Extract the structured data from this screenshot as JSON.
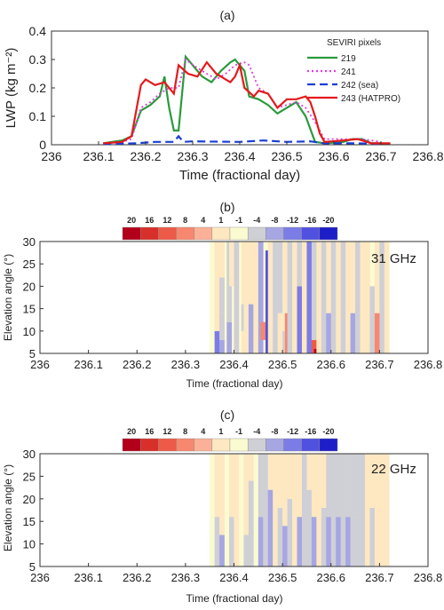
{
  "chart_data": [
    {
      "panel_label": "(a)",
      "type": "line",
      "xlabel": "Time (fractional day)",
      "ylabel": "LWP (kg m⁻²)",
      "xlim": [
        236,
        236.8
      ],
      "ylim": [
        0,
        0.4
      ],
      "xticks": [
        "236",
        "236.1",
        "236.2",
        "236.3",
        "236.4",
        "236.5",
        "236.6",
        "236.7",
        "236.8"
      ],
      "yticks": [
        "0",
        "0.1",
        "0.2",
        "0.3",
        "0.4"
      ],
      "legend": {
        "title": "SEVIRI pixels",
        "placement": "right"
      },
      "series": [
        {
          "name": "219",
          "color": "#2a9a3c",
          "dash": "solid",
          "points": [
            [
              236.11,
              0.005
            ],
            [
              236.15,
              0.015
            ],
            [
              236.17,
              0.03
            ],
            [
              236.19,
              0.12
            ],
            [
              236.21,
              0.14
            ],
            [
              236.23,
              0.17
            ],
            [
              236.24,
              0.24
            ],
            [
              236.25,
              0.13
            ],
            [
              236.26,
              0.05
            ],
            [
              236.27,
              0.05
            ],
            [
              236.285,
              0.31
            ],
            [
              236.3,
              0.28
            ],
            [
              236.32,
              0.24
            ],
            [
              236.34,
              0.22
            ],
            [
              236.36,
              0.26
            ],
            [
              236.38,
              0.29
            ],
            [
              236.39,
              0.3
            ],
            [
              236.4,
              0.28
            ],
            [
              236.41,
              0.26
            ],
            [
              236.42,
              0.17
            ],
            [
              236.44,
              0.16
            ],
            [
              236.46,
              0.14
            ],
            [
              236.48,
              0.11
            ],
            [
              236.5,
              0.13
            ],
            [
              236.52,
              0.15
            ],
            [
              236.54,
              0.1
            ],
            [
              236.56,
              0.01
            ],
            [
              236.58,
              0.005
            ],
            [
              236.62,
              0.01
            ],
            [
              236.64,
              0.02
            ],
            [
              236.66,
              0.02
            ],
            [
              236.68,
              0.005
            ],
            [
              236.7,
              0.005
            ]
          ]
        },
        {
          "name": "241",
          "color": "#e03ce0",
          "dash": "dot",
          "points": [
            [
              236.11,
              0.005
            ],
            [
              236.15,
              0.01
            ],
            [
              236.17,
              0.02
            ],
            [
              236.19,
              0.13
            ],
            [
              236.21,
              0.15
            ],
            [
              236.23,
              0.18
            ],
            [
              236.25,
              0.2
            ],
            [
              236.27,
              0.2
            ],
            [
              236.285,
              0.3
            ],
            [
              236.31,
              0.27
            ],
            [
              236.33,
              0.25
            ],
            [
              236.35,
              0.23
            ],
            [
              236.37,
              0.25
            ],
            [
              236.39,
              0.28
            ],
            [
              236.41,
              0.29
            ],
            [
              236.42,
              0.28
            ],
            [
              236.44,
              0.2
            ],
            [
              236.46,
              0.18
            ],
            [
              236.48,
              0.13
            ],
            [
              236.5,
              0.14
            ],
            [
              236.52,
              0.15
            ],
            [
              236.54,
              0.13
            ],
            [
              236.56,
              0.08
            ],
            [
              236.58,
              0.02
            ],
            [
              236.62,
              0.02
            ],
            [
              236.66,
              0.02
            ],
            [
              236.7,
              0.01
            ]
          ]
        },
        {
          "name": "242 (sea)",
          "color": "#1a3fd6",
          "dash": "dash",
          "points": [
            [
              236.11,
              0.003
            ],
            [
              236.18,
              0.005
            ],
            [
              236.22,
              0.01
            ],
            [
              236.26,
              0.01
            ],
            [
              236.27,
              0.03
            ],
            [
              236.28,
              0.01
            ],
            [
              236.3,
              0.012
            ],
            [
              236.4,
              0.01
            ],
            [
              236.45,
              0.015
            ],
            [
              236.5,
              0.01
            ],
            [
              236.55,
              0.012
            ],
            [
              236.58,
              0.005
            ],
            [
              236.65,
              0.005
            ],
            [
              236.7,
              0.003
            ]
          ]
        },
        {
          "name": "243 (HATPRO)",
          "color": "#e41a1c",
          "dash": "solid",
          "points": [
            [
              236.11,
              0.005
            ],
            [
              236.15,
              0.01
            ],
            [
              236.17,
              0.03
            ],
            [
              236.19,
              0.21
            ],
            [
              236.2,
              0.23
            ],
            [
              236.22,
              0.21
            ],
            [
              236.24,
              0.22
            ],
            [
              236.26,
              0.18
            ],
            [
              236.27,
              0.28
            ],
            [
              236.29,
              0.25
            ],
            [
              236.31,
              0.24
            ],
            [
              236.33,
              0.29
            ],
            [
              236.35,
              0.25
            ],
            [
              236.37,
              0.23
            ],
            [
              236.38,
              0.22
            ],
            [
              236.39,
              0.24
            ],
            [
              236.4,
              0.28
            ],
            [
              236.41,
              0.2
            ],
            [
              236.43,
              0.17
            ],
            [
              236.44,
              0.19
            ],
            [
              236.46,
              0.18
            ],
            [
              236.48,
              0.13
            ],
            [
              236.5,
              0.16
            ],
            [
              236.52,
              0.16
            ],
            [
              236.54,
              0.17
            ],
            [
              236.55,
              0.15
            ],
            [
              236.56,
              0.1
            ],
            [
              236.57,
              0.04
            ],
            [
              236.58,
              0.01
            ],
            [
              236.62,
              0.015
            ],
            [
              236.65,
              0.02
            ],
            [
              236.68,
              0.005
            ],
            [
              236.72,
              0.005
            ]
          ]
        }
      ]
    },
    {
      "panel_label": "(b)",
      "type": "heatmap",
      "annotation": "31 GHz",
      "xlabel": "Time (fractional day)",
      "ylabel": "Elevation angle (°)",
      "xlim": [
        236,
        236.8
      ],
      "ylim": [
        5,
        30
      ],
      "xticks": [
        "236",
        "236.1",
        "236.2",
        "236.3",
        "236.4",
        "236.5",
        "236.6",
        "236.7",
        "236.8"
      ],
      "yticks": [
        "5",
        "10",
        "15",
        "20",
        "25",
        "30"
      ],
      "colorbar": [
        "20",
        "16",
        "12",
        "8",
        "4",
        "1",
        "-1",
        "-4",
        "-8",
        "-12",
        "-16",
        "-20"
      ],
      "data_range": [
        236.35,
        236.72
      ],
      "cells": [
        [
          236.36,
          5,
          10,
          -10
        ],
        [
          236.36,
          10,
          30,
          1
        ],
        [
          236.37,
          5,
          8,
          -8
        ],
        [
          236.37,
          8,
          14,
          -4
        ],
        [
          236.37,
          14,
          22,
          -4
        ],
        [
          236.37,
          22,
          30,
          1
        ],
        [
          236.385,
          5,
          12,
          -6
        ],
        [
          236.385,
          12,
          30,
          -4
        ],
        [
          236.39,
          20,
          30,
          1
        ],
        [
          236.4,
          5,
          30,
          -4
        ],
        [
          236.415,
          5,
          10,
          2
        ],
        [
          236.415,
          10,
          16,
          -4
        ],
        [
          236.415,
          16,
          30,
          1
        ],
        [
          236.42,
          5,
          30,
          2
        ],
        [
          236.43,
          5,
          16,
          -8
        ],
        [
          236.43,
          16,
          30,
          1
        ],
        [
          236.44,
          5,
          30,
          2
        ],
        [
          236.45,
          5,
          30,
          -8
        ],
        [
          236.455,
          8,
          12,
          6
        ],
        [
          236.465,
          5,
          28,
          -14
        ],
        [
          236.47,
          5,
          30,
          2
        ],
        [
          236.48,
          5,
          30,
          -4
        ],
        [
          236.49,
          5,
          14,
          1
        ],
        [
          236.49,
          14,
          30,
          -4
        ],
        [
          236.5,
          5,
          10,
          -4
        ],
        [
          236.5,
          10,
          30,
          2
        ],
        [
          236.505,
          5,
          14,
          6
        ],
        [
          236.505,
          14,
          30,
          1
        ],
        [
          236.51,
          5,
          30,
          -4
        ],
        [
          236.52,
          5,
          30,
          1
        ],
        [
          236.53,
          5,
          20,
          -10
        ],
        [
          236.53,
          20,
          30,
          -4
        ],
        [
          236.54,
          5,
          30,
          2
        ],
        [
          236.55,
          5,
          30,
          -12
        ],
        [
          236.56,
          5,
          8,
          12
        ],
        [
          236.56,
          8,
          30,
          -4
        ],
        [
          236.565,
          5,
          6,
          20
        ],
        [
          236.57,
          5,
          16,
          2
        ],
        [
          236.57,
          16,
          30,
          1
        ],
        [
          236.58,
          5,
          30,
          -4
        ],
        [
          236.59,
          5,
          14,
          -6
        ],
        [
          236.59,
          14,
          30,
          1
        ],
        [
          236.6,
          5,
          30,
          -4
        ],
        [
          236.61,
          5,
          30,
          1
        ],
        [
          236.62,
          5,
          30,
          -4
        ],
        [
          236.63,
          5,
          30,
          1
        ],
        [
          236.64,
          5,
          14,
          -6
        ],
        [
          236.64,
          14,
          30,
          1
        ],
        [
          236.65,
          5,
          30,
          -4
        ],
        [
          236.66,
          5,
          30,
          1
        ],
        [
          236.67,
          5,
          30,
          1
        ],
        [
          236.68,
          5,
          20,
          -4
        ],
        [
          236.69,
          5,
          14,
          8
        ],
        [
          236.69,
          14,
          30,
          1
        ],
        [
          236.7,
          5,
          30,
          -4
        ],
        [
          236.71,
          5,
          30,
          1
        ]
      ]
    },
    {
      "panel_label": "(c)",
      "type": "heatmap",
      "annotation": "22 GHz",
      "xlabel": "Time (fractional day)",
      "ylabel": "Elevation angle (°)",
      "xlim": [
        236,
        236.8
      ],
      "ylim": [
        5,
        30
      ],
      "xticks": [
        "236",
        "236.1",
        "236.2",
        "236.3",
        "236.4",
        "236.5",
        "236.6",
        "236.7",
        "236.8"
      ],
      "yticks": [
        "5",
        "10",
        "15",
        "20",
        "25",
        "30"
      ],
      "colorbar": [
        "20",
        "16",
        "12",
        "8",
        "4",
        "1",
        "-1",
        "-4",
        "-8",
        "-12",
        "-16",
        "-20"
      ],
      "data_range": [
        236.35,
        236.72
      ],
      "cells": [
        [
          236.36,
          5,
          16,
          -4
        ],
        [
          236.36,
          16,
          30,
          1
        ],
        [
          236.37,
          5,
          12,
          -6
        ],
        [
          236.37,
          12,
          30,
          1
        ],
        [
          236.39,
          5,
          16,
          -4
        ],
        [
          236.39,
          16,
          30,
          1
        ],
        [
          236.4,
          5,
          30,
          1
        ],
        [
          236.42,
          5,
          12,
          -4
        ],
        [
          236.42,
          12,
          30,
          1
        ],
        [
          236.43,
          5,
          24,
          -4
        ],
        [
          236.43,
          24,
          30,
          1
        ],
        [
          236.45,
          5,
          16,
          -6
        ],
        [
          236.45,
          16,
          30,
          -4
        ],
        [
          236.46,
          5,
          30,
          -4
        ],
        [
          236.47,
          5,
          22,
          -6
        ],
        [
          236.47,
          22,
          30,
          1
        ],
        [
          236.48,
          5,
          30,
          1
        ],
        [
          236.49,
          5,
          18,
          -4
        ],
        [
          236.49,
          18,
          30,
          1
        ],
        [
          236.5,
          5,
          14,
          -6
        ],
        [
          236.5,
          14,
          30,
          1
        ],
        [
          236.51,
          5,
          20,
          -4
        ],
        [
          236.51,
          20,
          30,
          1
        ],
        [
          236.52,
          5,
          30,
          1
        ],
        [
          236.53,
          5,
          16,
          -6
        ],
        [
          236.53,
          16,
          30,
          1
        ],
        [
          236.54,
          5,
          30,
          -4
        ],
        [
          236.55,
          5,
          22,
          -4
        ],
        [
          236.55,
          22,
          30,
          1
        ],
        [
          236.56,
          5,
          16,
          -6
        ],
        [
          236.56,
          16,
          30,
          1
        ],
        [
          236.57,
          5,
          30,
          1
        ],
        [
          236.58,
          5,
          18,
          -4
        ],
        [
          236.58,
          18,
          30,
          1
        ],
        [
          236.59,
          5,
          16,
          -6
        ],
        [
          236.59,
          16,
          30,
          -4
        ],
        [
          236.6,
          5,
          30,
          -4
        ],
        [
          236.61,
          5,
          16,
          -6
        ],
        [
          236.61,
          16,
          30,
          -4
        ],
        [
          236.62,
          5,
          30,
          -4
        ],
        [
          236.63,
          5,
          16,
          -6
        ],
        [
          236.63,
          16,
          30,
          -4
        ],
        [
          236.64,
          5,
          30,
          -4
        ],
        [
          236.65,
          5,
          16,
          -5
        ],
        [
          236.65,
          16,
          30,
          -4
        ],
        [
          236.66,
          5,
          30,
          -4
        ],
        [
          236.67,
          5,
          30,
          1
        ],
        [
          236.68,
          5,
          18,
          -4
        ],
        [
          236.68,
          18,
          30,
          1
        ],
        [
          236.69,
          5,
          30,
          1
        ],
        [
          236.7,
          5,
          30,
          1
        ],
        [
          236.71,
          5,
          30,
          1
        ]
      ]
    }
  ],
  "colors": {
    "colorbar": [
      "#b2001a",
      "#d7302a",
      "#ee5a48",
      "#f8876f",
      "#fbb198",
      "#fde8c2",
      "#fbfbd2",
      "#cfcfd6",
      "#a6a6e3",
      "#7c7ce6",
      "#5151e0",
      "#1e1ec8"
    ]
  }
}
